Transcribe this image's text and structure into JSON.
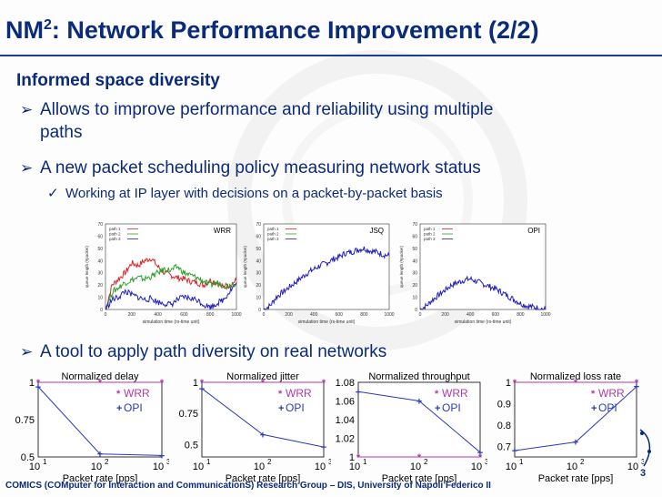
{
  "slide": {
    "title_main": "NM",
    "title_sup": "2",
    "title_rest": ": Network Performance Improvement (2/2)",
    "subheading": "Informed space diversity",
    "bullets": [
      {
        "line1": "Allows to improve performance and reliability using multiple",
        "line2": "paths"
      },
      {
        "line1": "A new packet scheduling policy measuring network status"
      }
    ],
    "sub_bullet": "Working at IP layer with decisions on a packet-by-packet basis",
    "bullet3": "A tool to apply path diversity on real networks",
    "footer": "COMICS (COMputer for Interaction and CommunicationS) Research Group – DIS, University of Napoli Federico II",
    "page_number": "3"
  },
  "colors": {
    "title": "#0a2a7a",
    "path1": "#d62728",
    "path2": "#2ca02c",
    "path3": "#1f1fbf",
    "wrr": "#b03aa8",
    "opi": "#2a3bb5"
  },
  "chart_data": [
    {
      "type": "line",
      "title": "WRR",
      "xlabel": "simulation time (rs-time unit)",
      "ylabel": "queue length (#packet)",
      "xlim": [
        0,
        1000
      ],
      "ylim": [
        0,
        70
      ],
      "xticks": [
        "0",
        "200",
        "400",
        "600",
        "800",
        "1000"
      ],
      "yticks": [
        "0",
        "10",
        "20",
        "30",
        "40",
        "50",
        "60",
        "70"
      ],
      "legend": [
        "path 1",
        "path 2",
        "path 3"
      ],
      "series": [
        {
          "name": "path 1",
          "x": [
            0,
            50,
            100,
            150,
            200,
            250,
            300,
            350,
            400,
            450,
            500,
            550,
            600,
            650,
            700,
            750,
            800,
            850,
            900,
            950,
            1000
          ],
          "values": [
            0,
            20,
            25,
            30,
            38,
            36,
            40,
            42,
            35,
            30,
            28,
            26,
            25,
            23,
            22,
            20,
            24,
            22,
            18,
            20,
            24
          ]
        },
        {
          "name": "path 2",
          "x": [
            0,
            50,
            100,
            150,
            200,
            250,
            300,
            350,
            400,
            450,
            500,
            550,
            600,
            650,
            700,
            750,
            800,
            850,
            900,
            950,
            1000
          ],
          "values": [
            0,
            14,
            18,
            22,
            24,
            26,
            25,
            27,
            30,
            33,
            32,
            35,
            30,
            28,
            26,
            23,
            20,
            22,
            20,
            20,
            22
          ]
        },
        {
          "name": "path 3",
          "x": [
            0,
            50,
            100,
            150,
            200,
            250,
            300,
            350,
            400,
            450,
            500,
            550,
            600,
            650,
            700,
            750,
            800,
            850,
            900,
            950,
            1000
          ],
          "values": [
            0,
            8,
            10,
            15,
            12,
            10,
            8,
            9,
            6,
            5,
            4,
            8,
            10,
            9,
            8,
            4,
            2,
            5,
            8,
            15,
            22
          ]
        }
      ]
    },
    {
      "type": "line",
      "title": "JSQ",
      "xlabel": "simulation time (rs-time unit)",
      "ylabel": "queue length (#packet)",
      "xlim": [
        0,
        1000
      ],
      "ylim": [
        0,
        70
      ],
      "xticks": [
        "0",
        "200",
        "400",
        "600",
        "800",
        "1000"
      ],
      "yticks": [
        "0",
        "10",
        "20",
        "30",
        "40",
        "50",
        "60",
        "70"
      ],
      "legend": [
        "path 1",
        "path 2",
        "path 3"
      ],
      "series": [
        {
          "name": "path 3",
          "x": [
            0,
            50,
            100,
            150,
            200,
            250,
            300,
            350,
            400,
            450,
            500,
            550,
            600,
            650,
            700,
            750,
            800,
            850,
            900,
            950,
            1000
          ],
          "values": [
            0,
            3,
            10,
            14,
            18,
            22,
            26,
            30,
            33,
            36,
            38,
            41,
            43,
            46,
            47,
            49,
            50,
            48,
            47,
            45,
            44
          ]
        }
      ]
    },
    {
      "type": "line",
      "title": "OPI",
      "xlabel": "simulation time (rs-time unit)",
      "ylabel": "queue length (#packet)",
      "xlim": [
        0,
        1000
      ],
      "ylim": [
        0,
        70
      ],
      "xticks": [
        "0",
        "200",
        "400",
        "600",
        "800",
        "1000"
      ],
      "yticks": [
        "0",
        "10",
        "20",
        "30",
        "40",
        "50",
        "60",
        "70"
      ],
      "legend": [
        "path 1",
        "path 2",
        "path 3"
      ],
      "series": [
        {
          "name": "path 3",
          "x": [
            0,
            50,
            100,
            150,
            200,
            250,
            300,
            350,
            400,
            450,
            500,
            550,
            600,
            650,
            700,
            750,
            800,
            850,
            900,
            950,
            1000
          ],
          "values": [
            0,
            3,
            8,
            12,
            16,
            20,
            22,
            24,
            25,
            23,
            21,
            19,
            17,
            14,
            11,
            8,
            5,
            3,
            2,
            1,
            0
          ]
        }
      ]
    },
    {
      "type": "line",
      "title": "Normalized delay",
      "xlabel": "Packet rate [pps]",
      "x": [
        10,
        100,
        1000
      ],
      "xticks": [
        "10",
        "10",
        "10"
      ],
      "xtick_exponents": [
        "1",
        "2",
        "3"
      ],
      "ylim": [
        0.5,
        1
      ],
      "yticks": [
        "0.5",
        "0.75",
        "1"
      ],
      "ytick_values": [
        0.5,
        0.75,
        1
      ],
      "legend": [
        "WRR",
        "OPI"
      ],
      "series": [
        {
          "name": "WRR",
          "values": [
            1,
            1,
            1
          ]
        },
        {
          "name": "OPI",
          "values": [
            0.97,
            0.52,
            0.51
          ]
        }
      ]
    },
    {
      "type": "line",
      "title": "Normalized jitter",
      "xlabel": "Packet rate [pps]",
      "x": [
        10,
        100,
        1000
      ],
      "xticks": [
        "10",
        "10",
        "10"
      ],
      "xtick_exponents": [
        "1",
        "2",
        "3"
      ],
      "ylim": [
        0.4,
        1
      ],
      "yticks": [
        "0.5",
        "0.75",
        "1"
      ],
      "ytick_values": [
        0.5,
        0.75,
        1
      ],
      "legend": [
        "WRR",
        "OPI"
      ],
      "series": [
        {
          "name": "WRR",
          "values": [
            1,
            1,
            1
          ]
        },
        {
          "name": "OPI",
          "values": [
            0.95,
            0.58,
            0.48
          ]
        }
      ]
    },
    {
      "type": "line",
      "title": "Normalized throughput",
      "xlabel": "Packet rate [pps]",
      "x": [
        10,
        100,
        1000
      ],
      "xticks": [
        "10",
        "10",
        "10"
      ],
      "xtick_exponents": [
        "1",
        "2",
        "3"
      ],
      "ylim": [
        1,
        1.08
      ],
      "yticks": [
        "1",
        "1.02",
        "1.04",
        "1.06",
        "1.08"
      ],
      "ytick_values": [
        1,
        1.02,
        1.04,
        1.06,
        1.08
      ],
      "legend": [
        "WRR",
        "OPI"
      ],
      "series": [
        {
          "name": "WRR",
          "values": [
            1,
            1,
            1
          ]
        },
        {
          "name": "OPI",
          "values": [
            1.07,
            1.06,
            1.005
          ]
        }
      ]
    },
    {
      "type": "line",
      "title": "Normalized loss rate",
      "xlabel": "Packet rate [pps]",
      "x": [
        10,
        100,
        1000
      ],
      "xticks": [
        "10",
        "10",
        "10"
      ],
      "xtick_exponents": [
        "1",
        "2",
        "3"
      ],
      "ylim": [
        0.65,
        1
      ],
      "yticks": [
        "0.7",
        "0.8",
        "0.9",
        "1"
      ],
      "ytick_values": [
        0.7,
        0.8,
        0.9,
        1
      ],
      "legend": [
        "WRR",
        "OPI"
      ],
      "series": [
        {
          "name": "WRR",
          "values": [
            1,
            1,
            1
          ]
        },
        {
          "name": "OPI",
          "values": [
            0.68,
            0.72,
            0.98
          ]
        }
      ]
    }
  ]
}
